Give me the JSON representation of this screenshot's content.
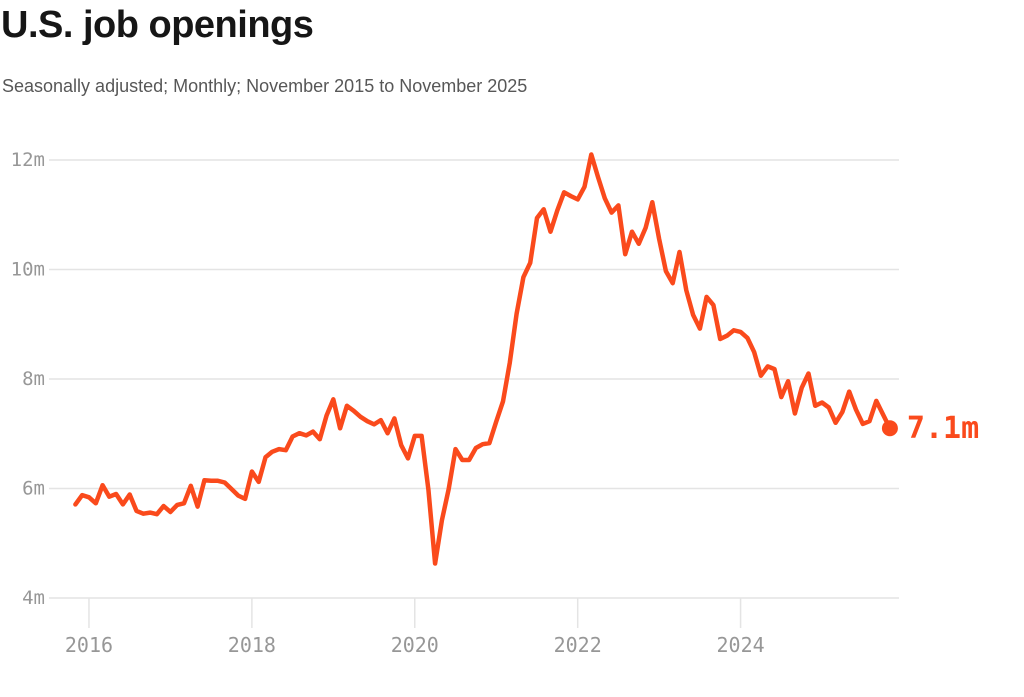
{
  "chart": {
    "title": "U.S. job openings",
    "subtitle": "Seasonally adjusted; Monthly; November 2015 to November 2025"
  },
  "chart_data": {
    "type": "line",
    "title": "U.S. job openings",
    "subtitle": "Seasonally adjusted; Monthly; November 2015 to November 2025",
    "unit": "millions of job openings",
    "frequency": "monthly",
    "start_month": "2015-11",
    "end_month": "2025-11",
    "ylim": [
      4,
      12.5
    ],
    "y_tick_values": [
      4,
      6,
      8,
      10,
      12
    ],
    "y_tick_labels": [
      "4m",
      "6m",
      "8m",
      "10m",
      "12m"
    ],
    "x_tick_years": [
      2016,
      2018,
      2020,
      2022,
      2024
    ],
    "x_tick_labels": [
      "2016",
      "2018",
      "2020",
      "2022",
      "2024"
    ],
    "grid": "horizontal",
    "legend": "none",
    "end_label": "7.1m",
    "last_value": 7.1,
    "colors": {
      "line": "#fa4a1c",
      "end_dot": "#fa4a1c",
      "end_label": "#fa4a1c",
      "grid": "#e4e4e4",
      "tick_text": "#979797",
      "title": "#161616",
      "subtitle": "#575757",
      "background": "#ffffff"
    },
    "series": [
      {
        "name": "U.S. job openings (millions)",
        "values": [
          5.71,
          5.88,
          5.84,
          5.73,
          6.06,
          5.85,
          5.9,
          5.71,
          5.89,
          5.59,
          5.54,
          5.56,
          5.53,
          5.68,
          5.57,
          5.7,
          5.73,
          6.05,
          5.67,
          6.15,
          6.14,
          6.14,
          6.11,
          5.99,
          5.87,
          5.81,
          6.31,
          6.12,
          6.57,
          6.67,
          6.72,
          6.7,
          6.95,
          7.01,
          6.97,
          7.04,
          6.9,
          7.33,
          7.63,
          7.1,
          7.51,
          7.42,
          7.31,
          7.23,
          7.17,
          7.25,
          7.01,
          7.28,
          6.79,
          6.55,
          6.96,
          6.96,
          5.98,
          4.63,
          5.42,
          5.99,
          6.72,
          6.52,
          6.52,
          6.74,
          6.81,
          6.83,
          7.22,
          7.59,
          8.3,
          9.19,
          9.86,
          10.12,
          10.94,
          11.1,
          10.69,
          11.08,
          11.41,
          11.34,
          11.28,
          11.51,
          12.1,
          11.69,
          11.3,
          11.04,
          11.17,
          10.28,
          10.69,
          10.47,
          10.76,
          11.23,
          10.56,
          9.97,
          9.75,
          10.32,
          9.62,
          9.17,
          8.92,
          9.5,
          9.35,
          8.73,
          8.79,
          8.89,
          8.86,
          8.75,
          8.49,
          8.06,
          8.23,
          8.18,
          7.67,
          7.96,
          7.37,
          7.84,
          8.1,
          7.51,
          7.57,
          7.48,
          7.2,
          7.4,
          7.77,
          7.44,
          7.18,
          7.23,
          7.6,
          7.35,
          7.1
        ]
      }
    ]
  }
}
